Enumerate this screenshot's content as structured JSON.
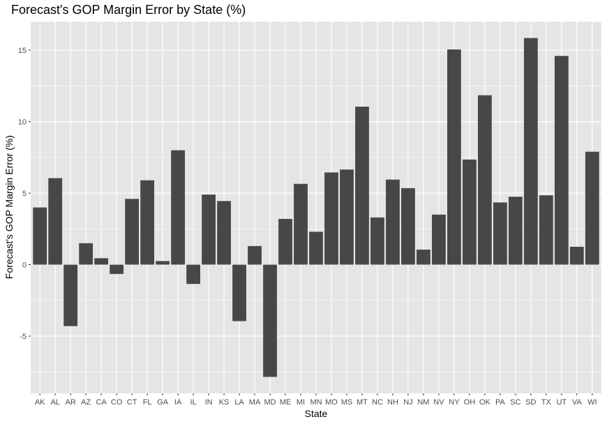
{
  "chart_data": {
    "type": "bar",
    "title": "Forecast's GOP Margin Error by State (%)",
    "xlabel": "State",
    "ylabel": "Forecast's GOP Margin Error (%)",
    "categories": [
      "AK",
      "AL",
      "AR",
      "AZ",
      "CA",
      "CO",
      "CT",
      "FL",
      "GA",
      "IA",
      "IL",
      "IN",
      "KS",
      "LA",
      "MA",
      "MD",
      "ME",
      "MI",
      "MN",
      "MO",
      "MS",
      "MT",
      "NC",
      "NH",
      "NJ",
      "NM",
      "NV",
      "NY",
      "OH",
      "OK",
      "PA",
      "SC",
      "SD",
      "TX",
      "UT",
      "VA",
      "WI"
    ],
    "values": [
      4.0,
      6.05,
      -4.3,
      1.5,
      0.45,
      -0.65,
      4.6,
      5.9,
      0.25,
      8.0,
      -1.35,
      4.9,
      4.45,
      -3.95,
      1.3,
      -7.85,
      3.2,
      5.65,
      2.3,
      6.45,
      6.65,
      11.05,
      3.3,
      5.95,
      5.35,
      1.05,
      3.5,
      15.05,
      7.35,
      11.85,
      4.35,
      4.75,
      15.85,
      4.85,
      14.6,
      1.25,
      7.9
    ],
    "ylim": [
      -9.0,
      17.0
    ],
    "yticks": [
      -5,
      0,
      5,
      10,
      15
    ],
    "bar_color": "#474747",
    "panel_color": "#e5e5e5",
    "grid_color": "#ffffff",
    "grid": true
  }
}
